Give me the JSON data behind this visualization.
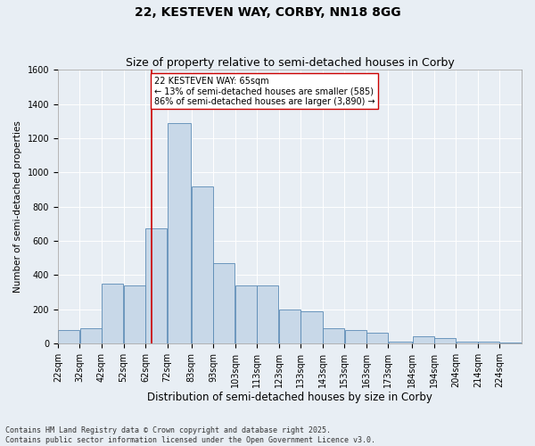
{
  "title": "22, KESTEVEN WAY, CORBY, NN18 8GG",
  "subtitle": "Size of property relative to semi-detached houses in Corby",
  "xlabel": "Distribution of semi-detached houses by size in Corby",
  "ylabel": "Number of semi-detached properties",
  "categories": [
    "22sqm",
    "32sqm",
    "42sqm",
    "52sqm",
    "62sqm",
    "72sqm",
    "83sqm",
    "93sqm",
    "103sqm",
    "113sqm",
    "123sqm",
    "133sqm",
    "143sqm",
    "153sqm",
    "163sqm",
    "173sqm",
    "184sqm",
    "194sqm",
    "204sqm",
    "214sqm",
    "224sqm"
  ],
  "bar_edges": [
    22,
    32,
    42,
    52,
    62,
    72,
    83,
    93,
    103,
    113,
    123,
    133,
    143,
    153,
    163,
    173,
    184,
    194,
    204,
    214,
    224
  ],
  "bar_heights": [
    75,
    90,
    350,
    340,
    670,
    1290,
    920,
    470,
    340,
    340,
    195,
    185,
    90,
    80,
    60,
    10,
    40,
    30,
    10,
    10,
    5
  ],
  "bar_color": "#c8d8e8",
  "bar_edge_color": "#5a8ab5",
  "vline_x": 65,
  "vline_color": "#cc0000",
  "annotation_text": "22 KESTEVEN WAY: 65sqm\n← 13% of semi-detached houses are smaller (585)\n86% of semi-detached houses are larger (3,890) →",
  "annotation_box_color": "#ffffff",
  "annotation_box_edge": "#cc0000",
  "ylim": [
    0,
    1600
  ],
  "yticks": [
    0,
    200,
    400,
    600,
    800,
    1000,
    1200,
    1400,
    1600
  ],
  "background_color": "#e8eef4",
  "plot_bg_color": "#e8eef4",
  "footer": "Contains HM Land Registry data © Crown copyright and database right 2025.\nContains public sector information licensed under the Open Government Licence v3.0.",
  "title_fontsize": 10,
  "subtitle_fontsize": 9,
  "xlabel_fontsize": 8.5,
  "ylabel_fontsize": 7.5,
  "tick_fontsize": 7,
  "footer_fontsize": 6,
  "annot_fontsize": 7
}
